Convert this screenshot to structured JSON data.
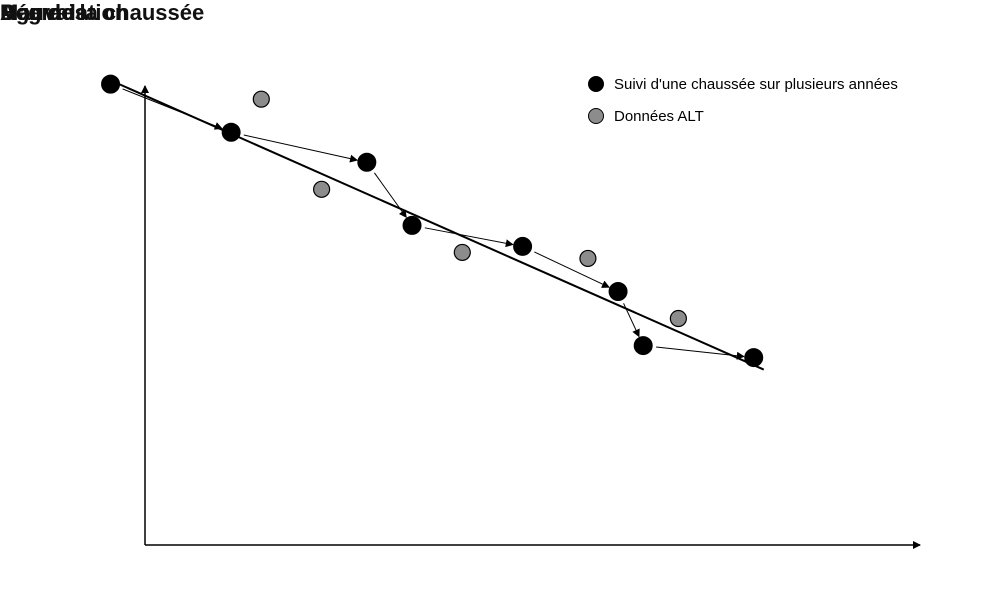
{
  "chart_data": {
    "type": "scatter",
    "ylabel": "Dégradation",
    "xlabel": "Age de la chaussée",
    "y_top_label": "Bon",
    "y_bottom_label": "Mauvais",
    "series": [
      {
        "name": "Suivi d'une chaussée sur plusieurs années",
        "color": "#000000",
        "connected_with_arrows": true,
        "points": [
          {
            "x": 0.11,
            "y": 0.86
          },
          {
            "x": 0.23,
            "y": 0.78
          },
          {
            "x": 0.365,
            "y": 0.73
          },
          {
            "x": 0.41,
            "y": 0.625
          },
          {
            "x": 0.52,
            "y": 0.59
          },
          {
            "x": 0.615,
            "y": 0.515
          },
          {
            "x": 0.64,
            "y": 0.425
          },
          {
            "x": 0.75,
            "y": 0.405
          }
        ]
      },
      {
        "name": "Données ALT",
        "color": "#8c8c8c",
        "points": [
          {
            "x": 0.26,
            "y": 0.835
          },
          {
            "x": 0.32,
            "y": 0.685
          },
          {
            "x": 0.46,
            "y": 0.58
          },
          {
            "x": 0.585,
            "y": 0.57
          },
          {
            "x": 0.675,
            "y": 0.47
          }
        ]
      }
    ],
    "trend_line": {
      "x": [
        0.105,
        0.76
      ],
      "y": [
        0.87,
        0.385
      ]
    }
  }
}
